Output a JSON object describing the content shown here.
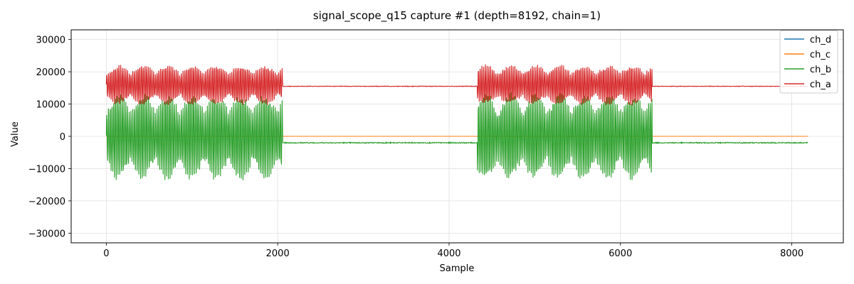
{
  "chart_data": {
    "type": "line",
    "title": "signal_scope_q15 capture #1 (depth=8192, chain=1)",
    "xlabel": "Sample",
    "ylabel": "Value",
    "xlim": [
      -410,
      8601
    ],
    "ylim": [
      -33000,
      33000
    ],
    "xticks": [
      0,
      2000,
      4000,
      6000,
      8000
    ],
    "yticks": [
      -30000,
      -20000,
      -10000,
      0,
      10000,
      20000,
      30000
    ],
    "xtick_labels": [
      "0",
      "2000",
      "4000",
      "6000",
      "8000"
    ],
    "ytick_labels": [
      "−30000",
      "−20000",
      "−10000",
      "0",
      "10000",
      "20000",
      "30000"
    ],
    "grid": true,
    "legend_position": "top-right",
    "depth": 8192,
    "bursts": [
      [
        0,
        2060
      ],
      [
        4330,
        6370
      ]
    ],
    "series": [
      {
        "name": "ch_d",
        "color": "#1f77b4",
        "burst": "flat",
        "level": 0,
        "amplitude": 0,
        "noise": 0
      },
      {
        "name": "ch_c",
        "color": "#ff7f0e",
        "burst": "flat",
        "level": 0,
        "amplitude": 0,
        "noise": 0
      },
      {
        "name": "ch_b",
        "color": "#2ca02c",
        "burst": "osc",
        "center": 0,
        "amplitude": 13000,
        "idle_level": -2000,
        "noise": 150
      },
      {
        "name": "ch_a",
        "color": "#d62728",
        "burst": "osc",
        "center": 16000,
        "amplitude": 6000,
        "idle_level": 15500,
        "noise": 80
      }
    ]
  }
}
